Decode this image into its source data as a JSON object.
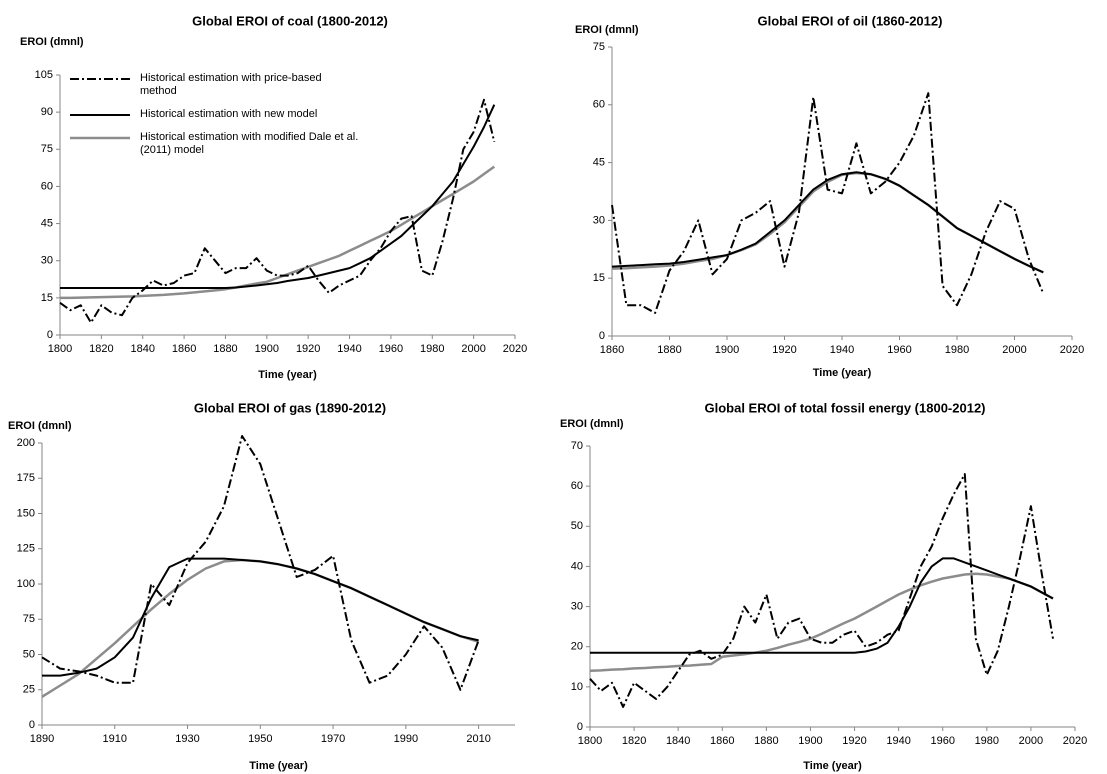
{
  "chart_data": [
    {
      "type": "line",
      "title": "Global EROI of coal (1800-2012)",
      "y_label": "EROI (dmnl)",
      "x_label": "Time (year)",
      "xlim": [
        1800,
        2020
      ],
      "xticks": [
        1800,
        1820,
        1840,
        1860,
        1880,
        1900,
        1920,
        1940,
        1960,
        1980,
        2000,
        2020
      ],
      "ylim": [
        0,
        105
      ],
      "yticks": [
        0,
        15,
        30,
        45,
        60,
        75,
        90,
        105
      ],
      "grid": false,
      "legend": "top-left",
      "x": [
        1800,
        1805,
        1810,
        1815,
        1820,
        1825,
        1830,
        1835,
        1840,
        1845,
        1850,
        1855,
        1860,
        1865,
        1870,
        1875,
        1880,
        1885,
        1890,
        1895,
        1900,
        1905,
        1910,
        1915,
        1920,
        1925,
        1930,
        1935,
        1940,
        1945,
        1950,
        1955,
        1960,
        1965,
        1970,
        1975,
        1980,
        1985,
        1990,
        1995,
        2000,
        2005,
        2010
      ],
      "series": [
        {
          "name": "Historical estimation with price-based method",
          "color": "#000000",
          "linestyle": "dash-dot",
          "values": [
            13,
            10,
            12,
            5,
            12,
            9,
            8,
            15,
            18,
            22,
            20,
            21,
            24,
            25,
            35,
            30,
            25,
            27,
            27,
            31,
            26,
            24,
            24,
            25,
            28,
            22,
            17,
            20,
            22,
            24,
            30,
            35,
            42,
            47,
            48,
            26,
            24,
            38,
            55,
            75,
            82,
            95,
            78
          ]
        },
        {
          "name": "Historical estimation with new model",
          "color": "#000000",
          "linestyle": "solid",
          "values": [
            19,
            19,
            19,
            19,
            19,
            19,
            19,
            19,
            19,
            19,
            19,
            19,
            19,
            19,
            19,
            19,
            19,
            19.2,
            19.6,
            20,
            20.5,
            21,
            21.8,
            22.4,
            23,
            24,
            25,
            26,
            27,
            29,
            31,
            34,
            37,
            40,
            44,
            48,
            52,
            57,
            62,
            69,
            76,
            84,
            93
          ]
        },
        {
          "name": "Historical estimation with modified Dale et al. (2011) model",
          "color": "#8c8c8c",
          "linestyle": "solid",
          "values": [
            15,
            15,
            15.1,
            15.2,
            15.3,
            15.4,
            15.5,
            15.6,
            15.8,
            16,
            16.2,
            16.5,
            16.8,
            17.2,
            17.6,
            18,
            18.5,
            19.2,
            20,
            20.8,
            21.5,
            23,
            24.5,
            26,
            27.5,
            29,
            30.5,
            32,
            34,
            36,
            38,
            40,
            42,
            44.5,
            47,
            49.5,
            52,
            54.5,
            57,
            59.5,
            62,
            65,
            68
          ]
        }
      ]
    },
    {
      "type": "line",
      "title": "Global EROI of oil (1860-2012)",
      "y_label": "EROI (dmnl)",
      "x_label": "Time (year)",
      "xlim": [
        1860,
        2020
      ],
      "xticks": [
        1860,
        1880,
        1900,
        1920,
        1940,
        1960,
        1980,
        2000,
        2020
      ],
      "ylim": [
        0,
        75
      ],
      "yticks": [
        0,
        15,
        30,
        45,
        60,
        75
      ],
      "grid": false,
      "x": [
        1860,
        1865,
        1870,
        1875,
        1880,
        1885,
        1890,
        1895,
        1900,
        1905,
        1910,
        1915,
        1920,
        1925,
        1930,
        1935,
        1940,
        1945,
        1950,
        1955,
        1960,
        1965,
        1970,
        1975,
        1980,
        1985,
        1990,
        1995,
        2000,
        2005,
        2010
      ],
      "series": [
        {
          "color": "#000000",
          "linestyle": "dash-dot",
          "values": [
            34,
            8,
            8,
            6,
            17,
            22,
            30,
            16,
            20,
            30,
            32,
            35,
            18,
            32,
            62,
            38,
            37,
            50,
            37,
            40,
            45,
            52,
            63,
            13,
            8,
            16,
            27,
            35,
            33,
            20,
            11
          ]
        },
        {
          "color": "#000000",
          "linestyle": "solid",
          "values": [
            18,
            18.2,
            18.4,
            18.6,
            18.8,
            19.2,
            19.8,
            20.4,
            21,
            22.4,
            24,
            27,
            30,
            34,
            38,
            40.5,
            42,
            42.5,
            42,
            40.8,
            39,
            36.5,
            34,
            31,
            28,
            26,
            24,
            22,
            20,
            18.2,
            16.5
          ]
        },
        {
          "color": "#8c8c8c",
          "linestyle": "solid",
          "values": [
            17.5,
            17.6,
            17.8,
            18,
            18.3,
            18.8,
            19.4,
            20,
            21,
            22.3,
            23.8,
            26.5,
            29.5,
            33.5,
            37.5,
            40,
            41.8,
            42.3,
            42,
            40.8,
            39,
            36.5,
            34,
            31,
            28,
            26,
            24,
            22,
            20,
            18.2,
            16.5
          ]
        }
      ]
    },
    {
      "type": "line",
      "title": "Global EROI of gas (1890-2012)",
      "y_label": "EROI (dmnl)",
      "x_label": "Time (year)",
      "xlim": [
        1890,
        2020
      ],
      "xticks": [
        1890,
        1910,
        1930,
        1950,
        1970,
        1990,
        2010
      ],
      "ylim": [
        0,
        200
      ],
      "yticks": [
        0,
        25,
        50,
        75,
        100,
        125,
        150,
        175,
        200
      ],
      "grid": false,
      "x": [
        1890,
        1895,
        1900,
        1905,
        1910,
        1915,
        1920,
        1925,
        1930,
        1935,
        1940,
        1945,
        1950,
        1955,
        1960,
        1965,
        1970,
        1975,
        1980,
        1985,
        1990,
        1995,
        2000,
        2005,
        2010
      ],
      "series": [
        {
          "color": "#000000",
          "linestyle": "dash-dot",
          "values": [
            48,
            40,
            38,
            35,
            30,
            30,
            100,
            85,
            115,
            130,
            155,
            205,
            185,
            145,
            105,
            110,
            120,
            60,
            30,
            35,
            50,
            70,
            55,
            25,
            60
          ]
        },
        {
          "color": "#000000",
          "linestyle": "solid",
          "values": [
            35,
            35,
            37,
            40,
            48,
            62,
            90,
            112,
            118,
            118,
            118,
            117,
            116,
            114,
            111,
            107,
            102,
            97,
            91,
            85,
            79,
            73,
            68,
            63,
            60
          ]
        },
        {
          "color": "#8c8c8c",
          "linestyle": "solid",
          "values": [
            20,
            28,
            36,
            47,
            58,
            70,
            82,
            93,
            103,
            111,
            116,
            117,
            116,
            114,
            111,
            107,
            102,
            97,
            91,
            85,
            79,
            73,
            68,
            63,
            59
          ]
        }
      ]
    },
    {
      "type": "line",
      "title": "Global EROI of total fossil energy (1800-2012)",
      "y_label": "EROI (dmnl)",
      "x_label": "Time (year)",
      "xlim": [
        1800,
        2020
      ],
      "xticks": [
        1800,
        1820,
        1840,
        1860,
        1880,
        1900,
        1920,
        1940,
        1960,
        1980,
        2000,
        2020
      ],
      "ylim": [
        0,
        70
      ],
      "yticks": [
        0,
        10,
        20,
        30,
        40,
        50,
        60,
        70
      ],
      "grid": false,
      "x": [
        1800,
        1805,
        1810,
        1815,
        1820,
        1825,
        1830,
        1835,
        1840,
        1845,
        1850,
        1855,
        1860,
        1865,
        1870,
        1875,
        1880,
        1885,
        1890,
        1895,
        1900,
        1905,
        1910,
        1915,
        1920,
        1925,
        1930,
        1935,
        1940,
        1945,
        1950,
        1955,
        1960,
        1965,
        1970,
        1975,
        1980,
        1985,
        1990,
        1995,
        2000,
        2005,
        2010
      ],
      "series": [
        {
          "color": "#000000",
          "linestyle": "dash-dot",
          "values": [
            12,
            9,
            11,
            5,
            11,
            9,
            7,
            10,
            14,
            18,
            19,
            17,
            18,
            22,
            30,
            26,
            33,
            22,
            26,
            27,
            22,
            21,
            21,
            23,
            24,
            20,
            21,
            23,
            24,
            32,
            40,
            45,
            52,
            58,
            63,
            22,
            13,
            19,
            30,
            42,
            55,
            38,
            22
          ]
        },
        {
          "color": "#000000",
          "linestyle": "solid",
          "values": [
            18.5,
            18.5,
            18.5,
            18.5,
            18.5,
            18.5,
            18.5,
            18.5,
            18.5,
            18.5,
            18.5,
            18.5,
            18.5,
            18.5,
            18.5,
            18.5,
            18.5,
            18.5,
            18.5,
            18.5,
            18.5,
            18.5,
            18.5,
            18.5,
            18.5,
            18.8,
            19.5,
            21,
            25,
            30,
            36,
            40,
            42,
            42,
            41,
            40,
            39,
            38,
            37,
            36,
            35,
            33.5,
            32
          ]
        },
        {
          "color": "#8c8c8c",
          "linestyle": "solid",
          "values": [
            14,
            14.1,
            14.3,
            14.4,
            14.6,
            14.7,
            14.9,
            15,
            15.2,
            15.3,
            15.5,
            15.7,
            17.5,
            17.8,
            18.1,
            18.5,
            19,
            19.7,
            20.5,
            21.2,
            22,
            23.2,
            24.5,
            25.8,
            27,
            28.5,
            30,
            31.5,
            33,
            34.2,
            35.3,
            36.2,
            37,
            37.5,
            38,
            38.2,
            38,
            37.5,
            37,
            36,
            35,
            33.5,
            32
          ]
        }
      ]
    }
  ]
}
